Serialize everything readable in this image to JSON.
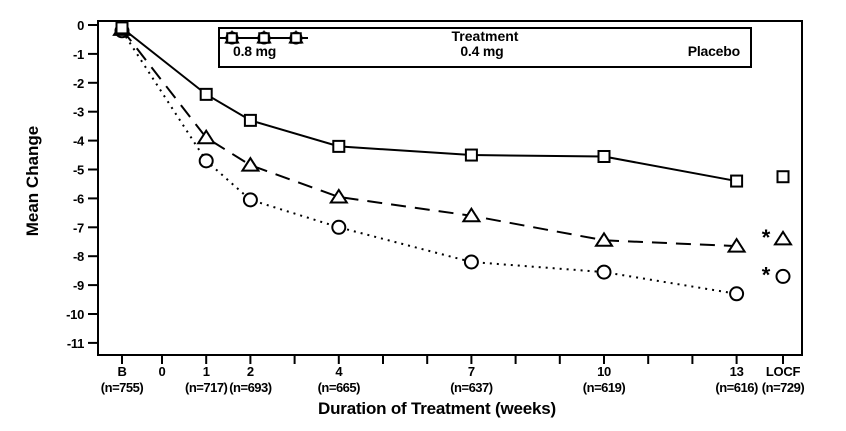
{
  "chart_data": {
    "type": "line",
    "title": "",
    "ylabel": "Mean Change",
    "xlabel": "Duration of Treatment (weeks)",
    "ylim": [
      -11.5,
      0.3
    ],
    "grid": false,
    "y_ticks": [
      0,
      -1,
      -2,
      -3,
      -4,
      -5,
      -6,
      -7,
      -8,
      -9,
      -10,
      -11
    ],
    "legend": {
      "title": "Treatment",
      "position": "top-inside"
    },
    "x_axis": {
      "ticks": [
        {
          "pos": "B",
          "label": "B",
          "n": "(n=755)"
        },
        {
          "pos": 0,
          "label": "0",
          "n": ""
        },
        {
          "pos": 1,
          "label": "1",
          "n": "(n=717)"
        },
        {
          "pos": 2,
          "label": "2",
          "n": "(n=693)"
        },
        {
          "pos": 3,
          "label": "",
          "n": ""
        },
        {
          "pos": 4,
          "label": "4",
          "n": "(n=665)"
        },
        {
          "pos": 5,
          "label": "",
          "n": ""
        },
        {
          "pos": 6,
          "label": "",
          "n": ""
        },
        {
          "pos": 7,
          "label": "7",
          "n": "(n=637)"
        },
        {
          "pos": 8,
          "label": "",
          "n": ""
        },
        {
          "pos": 9,
          "label": "",
          "n": ""
        },
        {
          "pos": 10,
          "label": "10",
          "n": "(n=619)"
        },
        {
          "pos": 11,
          "label": "",
          "n": ""
        },
        {
          "pos": 12,
          "label": "",
          "n": ""
        },
        {
          "pos": 13,
          "label": "13",
          "n": "(n=616)"
        },
        {
          "pos": "LOCF",
          "label": "LOCF",
          "n": "(n=729)"
        }
      ]
    },
    "series": [
      {
        "name": "0.8 mg",
        "marker": "circle",
        "line_style": "dotted",
        "x": [
          "B",
          1,
          2,
          4,
          7,
          10,
          13
        ],
        "values": [
          -0.2,
          -4.7,
          -6.05,
          -7.0,
          -8.2,
          -8.55,
          -9.3
        ],
        "locf_value": -8.7,
        "locf_significant": true
      },
      {
        "name": "0.4 mg",
        "marker": "triangle",
        "line_style": "dashed",
        "x": [
          "B",
          1,
          2,
          4,
          7,
          10,
          13
        ],
        "values": [
          -0.15,
          -3.9,
          -4.85,
          -5.95,
          -6.6,
          -7.45,
          -7.65
        ],
        "locf_value": -7.4,
        "locf_significant": true
      },
      {
        "name": "Placebo",
        "marker": "square",
        "line_style": "solid",
        "x": [
          "B",
          1,
          2,
          4,
          7,
          10,
          13
        ],
        "values": [
          -0.1,
          -2.4,
          -3.3,
          -4.2,
          -4.5,
          -4.55,
          -5.4
        ],
        "locf_value": -5.25,
        "locf_significant": false
      }
    ],
    "significance_marker": "*",
    "colors": {
      "ink": "#000000",
      "background": "#ffffff"
    }
  }
}
